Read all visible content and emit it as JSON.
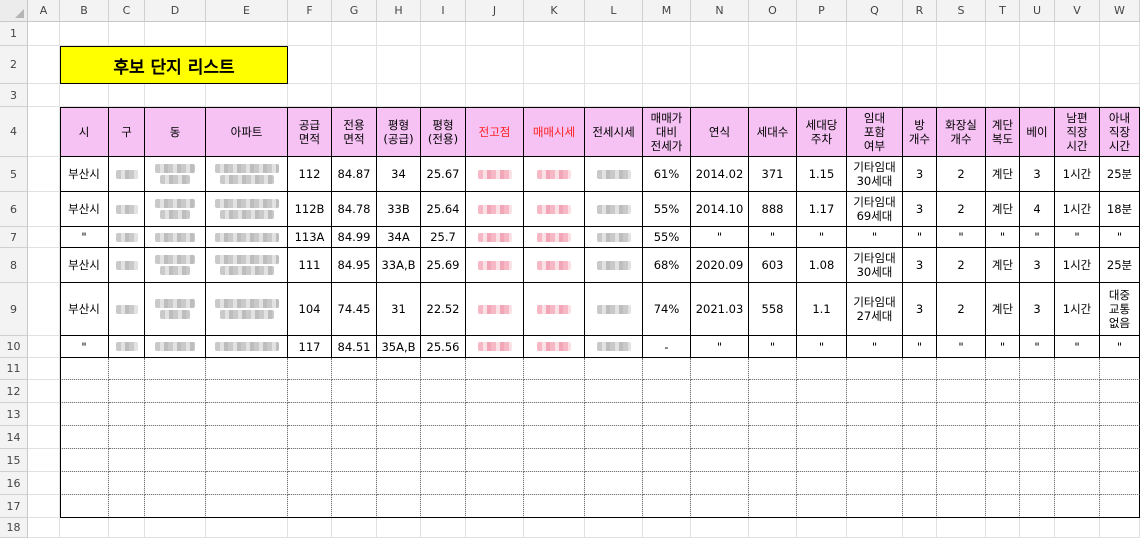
{
  "sheet": {
    "title": "후보 단지 리스트",
    "columns": [
      "A",
      "B",
      "C",
      "D",
      "E",
      "F",
      "G",
      "H",
      "I",
      "J",
      "K",
      "L",
      "M",
      "N",
      "O",
      "P",
      "Q",
      "R",
      "S",
      "T",
      "U",
      "V",
      "W"
    ],
    "rows": [
      "1",
      "2",
      "3",
      "4",
      "5",
      "6",
      "7",
      "8",
      "9",
      "10",
      "11",
      "12",
      "13",
      "14",
      "15",
      "16",
      "17",
      "18"
    ],
    "headers": [
      "시",
      "구",
      "동",
      "아파트",
      "공급\n면적",
      "전용\n면적",
      "평형\n(공급)",
      "평형\n(전용)",
      "전고점",
      "매매시세",
      "전세시세",
      "매매가\n대비\n전세가",
      "연식",
      "세대수",
      "세대당\n주차",
      "임대\n포함\n여부",
      "방\n개수",
      "화장실\n개수",
      "계단\n복도",
      "베이",
      "남편\n직장\n시간",
      "아내\n직장\n시간"
    ],
    "data_rows": [
      [
        "부산시",
        "",
        "",
        "",
        "112",
        "84.87",
        "34",
        "25.67",
        "",
        "",
        "",
        "61%",
        "2014.02",
        "371",
        "1.15",
        "기타임대\n30세대",
        "3",
        "2",
        "계단",
        "3",
        "1시간",
        "25분"
      ],
      [
        "부산시",
        "",
        "",
        "",
        "112B",
        "84.78",
        "33B",
        "25.64",
        "",
        "",
        "",
        "55%",
        "2014.10",
        "888",
        "1.17",
        "기타임대\n69세대",
        "3",
        "2",
        "계단",
        "4",
        "1시간",
        "18분"
      ],
      [
        "\"",
        "",
        "",
        "",
        "113A",
        "84.99",
        "34A",
        "25.7",
        "",
        "",
        "",
        "55%",
        "\"",
        "\"",
        "\"",
        "\"",
        "\"",
        "\"",
        "\"",
        "\"",
        "\"",
        "\""
      ],
      [
        "부산시",
        "",
        "",
        "",
        "111",
        "84.95",
        "33A,B",
        "25.69",
        "",
        "",
        "",
        "68%",
        "2020.09",
        "603",
        "1.08",
        "기타임대\n30세대",
        "3",
        "2",
        "계단",
        "3",
        "1시간",
        "25분"
      ],
      [
        "부산시",
        "",
        "",
        "",
        "104",
        "74.45",
        "31",
        "22.52",
        "",
        "",
        "",
        "74%",
        "2021.03",
        "558",
        "1.1",
        "기타임대\n27세대",
        "3",
        "2",
        "계단",
        "3",
        "1시간",
        "대중\n교통\n없음"
      ],
      [
        "\"",
        "",
        "",
        "",
        "117",
        "84.51",
        "35A,B",
        "25.56",
        "",
        "",
        "",
        "-",
        "\"",
        "\"",
        "\"",
        "\"",
        "\"",
        "\"",
        "\"",
        "\"",
        "\"",
        "\""
      ]
    ],
    "colors": {
      "header_fill": "#f5c2f3",
      "title_fill": "#ffff00",
      "red_text": "#ff2020"
    }
  }
}
